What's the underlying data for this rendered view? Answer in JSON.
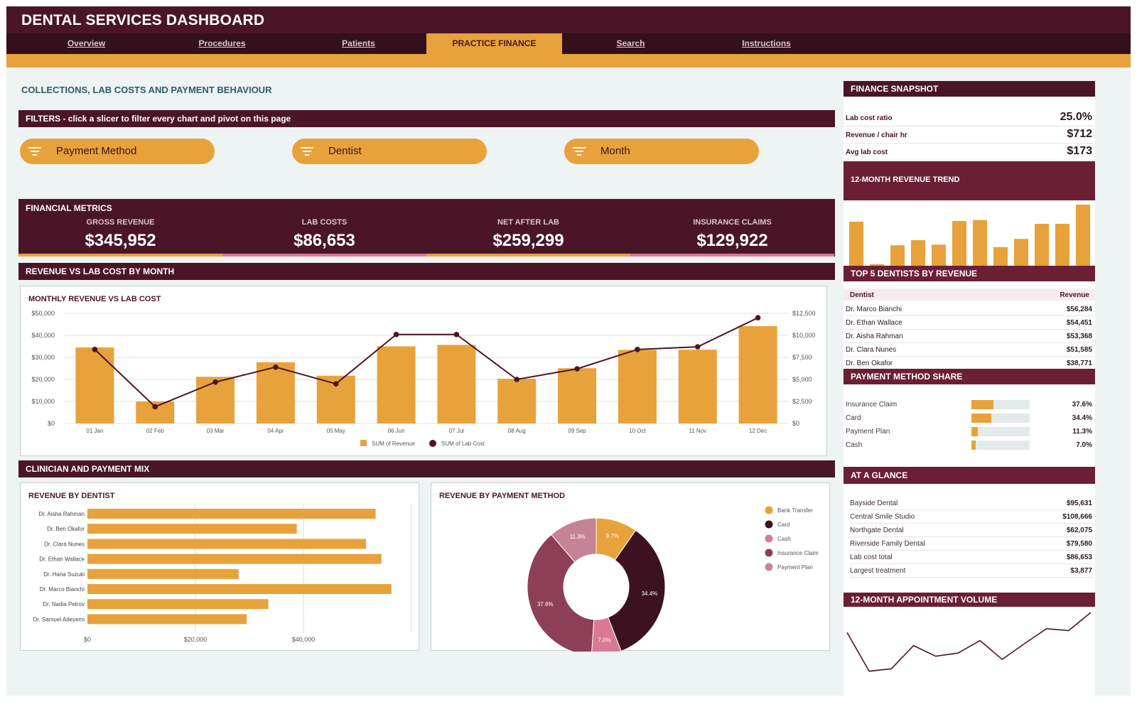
{
  "app": {
    "title": "DENTAL SERVICES DASHBOARD"
  },
  "nav": {
    "tabs": [
      {
        "label": "Overview"
      },
      {
        "label": "Procedures"
      },
      {
        "label": "Patients"
      },
      {
        "label": "PRACTICE FINANCE",
        "active": true
      },
      {
        "label": "Search"
      },
      {
        "label": "Instructions"
      }
    ]
  },
  "page": {
    "heading": "COLLECTIONS, LAB COSTS AND PAYMENT BEHAVIOUR"
  },
  "filters": {
    "header": "FILTERS  -  click a slicer to filter every chart and pivot on this page",
    "slicers": [
      {
        "label": "Payment Method"
      },
      {
        "label": "Dentist"
      },
      {
        "label": "Month"
      }
    ]
  },
  "metrics": {
    "title": "FINANCIAL METRICS",
    "items": [
      {
        "label": "GROSS REVENUE",
        "value": "$345,952",
        "underline": "#e8a23b"
      },
      {
        "label": "LAB COSTS",
        "value": "$86,653",
        "underline": "#d87a94"
      },
      {
        "label": "NET AFTER LAB",
        "value": "$259,299",
        "underline": "#e8a23b"
      },
      {
        "label": "INSURANCE CLAIMS",
        "value": "$129,922",
        "underline": "#d87a94"
      }
    ]
  },
  "revenue_section": {
    "header": "REVENUE VS LAB COST BY MONTH",
    "panel_title": "MONTHLY REVENUE VS LAB COST"
  },
  "mix_section": {
    "header": "CLINICIAN AND PAYMENT MIX",
    "dentist_title": "REVENUE BY DENTIST",
    "payment_title": "REVENUE BY PAYMENT METHOD"
  },
  "colors": {
    "maroon": "#4a1627",
    "gold": "#e8a23b",
    "maroon_light": "#6a1f35",
    "pink": "#d87a94"
  },
  "chart_data": [
    {
      "type": "bar+line",
      "title": "MONTHLY REVENUE VS LAB COST",
      "categories": [
        "01 Jan",
        "02 Feb",
        "03 Mar",
        "04 Apr",
        "05 May",
        "06 Jun",
        "07 Jul",
        "08 Aug",
        "09 Sep",
        "10 Oct",
        "11 Nov",
        "12 Dec"
      ],
      "series": [
        {
          "name": "SUM of Revenue",
          "type": "bar",
          "axis": "left",
          "color": "#e8a23b",
          "values": [
            34500,
            10000,
            21200,
            27800,
            21700,
            35000,
            35700,
            20300,
            25100,
            33400,
            33500,
            44200
          ]
        },
        {
          "name": "SUM of Lab Cost",
          "type": "line",
          "axis": "right",
          "color": "#4a1627",
          "values": [
            8400,
            1900,
            4700,
            6400,
            4500,
            10100,
            10100,
            5000,
            6200,
            8400,
            8700,
            12000
          ]
        }
      ],
      "y_left": {
        "range": [
          0,
          50000
        ],
        "ticks": [
          "$0",
          "$10,000",
          "$20,000",
          "$30,000",
          "$40,000",
          "$50,000"
        ]
      },
      "y_right": {
        "range": [
          0,
          12500
        ],
        "ticks": [
          "$0",
          "$2,500",
          "$5,000",
          "$7,500",
          "$10,000",
          "$12,500"
        ]
      },
      "grid": true,
      "legend": "bottom"
    },
    {
      "type": "bar",
      "orientation": "horizontal",
      "title": "REVENUE BY DENTIST",
      "categories": [
        "Dr. Aisha Rahman",
        "Dr. Ben Okafor",
        "Dr. Clara Nunes",
        "Dr. Ethan Wallace",
        "Dr. Hana Suzuki",
        "Dr. Marco Bianchi",
        "Dr. Nadia Petrov",
        "Dr. Samuel Adeyemi"
      ],
      "values": [
        53368,
        38771,
        51585,
        54451,
        28000,
        56284,
        33500,
        29500
      ],
      "x_range": [
        0,
        60000
      ],
      "x_ticks": [
        "$0",
        "$20,000",
        "$40,000"
      ],
      "color": "#e8a23b"
    },
    {
      "type": "pie",
      "donut": true,
      "title": "REVENUE BY PAYMENT METHOD",
      "slices": [
        {
          "name": "Bank Transfer",
          "value": 9.7,
          "label": "9.7%",
          "color": "#e8a23b"
        },
        {
          "name": "Card",
          "value": 34.4,
          "label": "34.4%",
          "color": "#3d1220"
        },
        {
          "name": "Cash",
          "value": 7.0,
          "label": "7.0%",
          "color": "#d87a94"
        },
        {
          "name": "Insurance Claim",
          "value": 37.6,
          "label": "37.6%",
          "color": "#8e3f58"
        },
        {
          "name": "Payment Plan",
          "value": 11.3,
          "label": "11.3%",
          "color": "#c48496"
        }
      ],
      "legend": "right"
    },
    {
      "type": "bar",
      "title": "12-MONTH REVENUE TREND",
      "values": [
        34500,
        1200,
        16000,
        20000,
        16500,
        35000,
        35700,
        14600,
        21000,
        32800,
        32800,
        47800
      ],
      "color": "#e8a23b"
    },
    {
      "type": "line",
      "title": "12-MONTH APPOINTMENT VOLUME",
      "values": [
        68,
        6,
        10,
        47,
        30,
        35,
        55,
        25,
        50,
        74,
        71,
        100
      ],
      "color": "#4a1627"
    }
  ],
  "snapshot": {
    "title": "FINANCE SNAPSHOT",
    "rows": [
      {
        "label": "Lab cost ratio",
        "value": "25.0%"
      },
      {
        "label": "Revenue / chair hr",
        "value": "$712"
      },
      {
        "label": "Avg lab cost",
        "value": "$173"
      }
    ],
    "trend_title": "12-MONTH REVENUE TREND"
  },
  "top_dentists": {
    "title": "TOP 5 DENTISTS BY REVENUE",
    "col_dentist": "Dentist",
    "col_revenue": "Revenue",
    "rows": [
      {
        "name": "Dr. Marco Bianchi",
        "revenue": "$56,284"
      },
      {
        "name": "Dr. Ethan Wallace",
        "revenue": "$54,451"
      },
      {
        "name": "Dr. Aisha Rahman",
        "revenue": "$53,368"
      },
      {
        "name": "Dr. Clara Nunes",
        "revenue": "$51,585"
      },
      {
        "name": "Dr. Ben Okafor",
        "revenue": "$38,771"
      }
    ]
  },
  "payment_share": {
    "title": "PAYMENT METHOD SHARE",
    "rows": [
      {
        "label": "Insurance Claim",
        "value": "37.6%",
        "share": 0.376
      },
      {
        "label": "Card",
        "value": "34.4%",
        "share": 0.344
      },
      {
        "label": "Payment Plan",
        "value": "11.3%",
        "share": 0.113
      },
      {
        "label": "Cash",
        "value": "7.0%",
        "share": 0.07
      }
    ]
  },
  "at_a_glance": {
    "title": "AT A GLANCE",
    "rows": [
      {
        "label": "Bayside Dental",
        "value": "$95,631"
      },
      {
        "label": "Central Smile Studio",
        "value": "$108,666"
      },
      {
        "label": "Northgate Dental",
        "value": "$62,075"
      },
      {
        "label": "Riverside Family Dental",
        "value": "$79,580"
      },
      {
        "label": "Lab cost total",
        "value": "$86,653"
      },
      {
        "label": "Largest treatment",
        "value": "$3,877"
      }
    ]
  },
  "appointments": {
    "title": "12-MONTH APPOINTMENT VOLUME"
  }
}
